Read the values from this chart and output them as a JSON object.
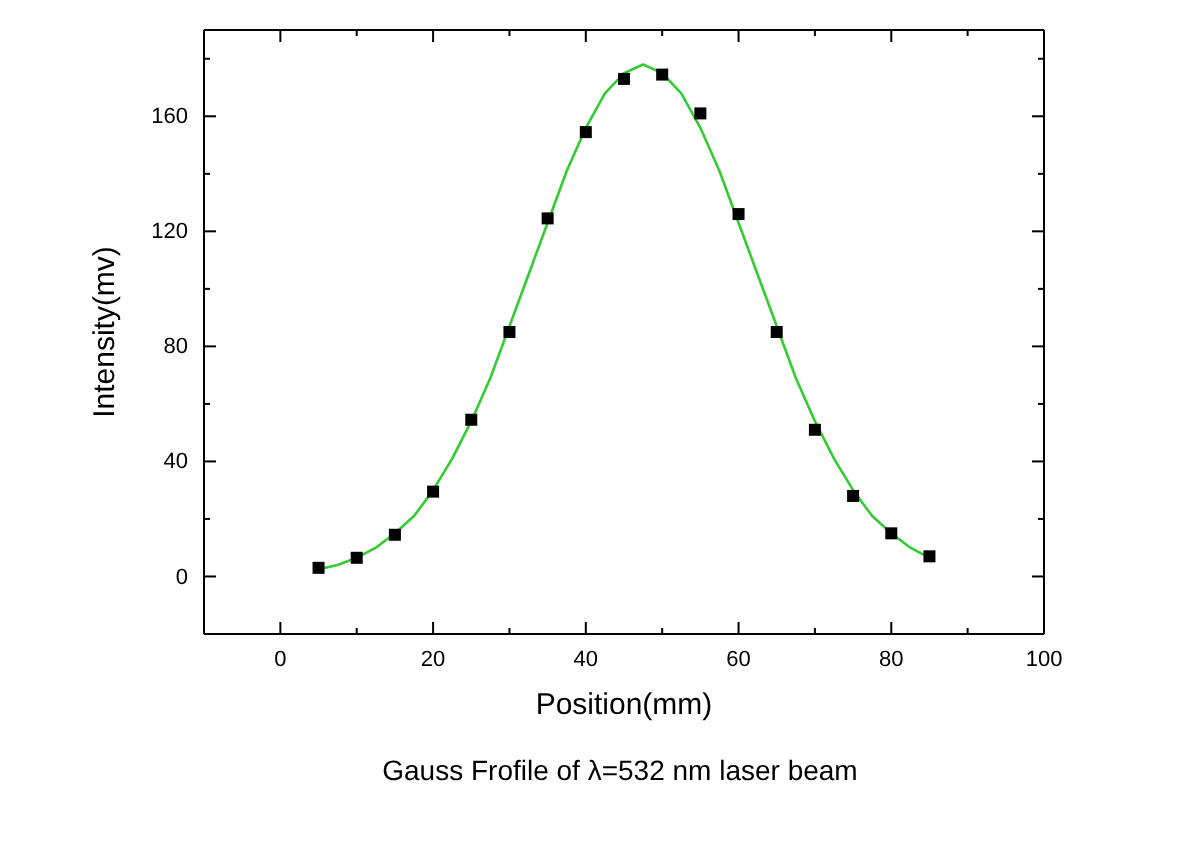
{
  "chart_data": {
    "type": "scatter",
    "title": "Gauss Frofile of λ=532 nm laser beam",
    "xlabel": "Position(mm)",
    "ylabel": "Intensity(mv)",
    "xlim": [
      -10,
      100
    ],
    "xticks": [
      0,
      {
        "value": 10,
        "label": null
      },
      20,
      {
        "value": 30,
        "label": null
      },
      40,
      {
        "value": 50,
        "label": null
      },
      60,
      {
        "value": 70,
        "label": null
      },
      80,
      {
        "value": 90,
        "label": null
      },
      100
    ],
    "ylim": [
      -20,
      190
    ],
    "yticks": [
      0,
      {
        "value": 20,
        "label": null
      },
      40,
      {
        "value": 60,
        "label": null
      },
      80,
      {
        "value": 100,
        "label": null
      },
      120,
      {
        "value": 140,
        "label": null
      },
      160,
      {
        "value": 180,
        "label": null
      }
    ],
    "grid": false,
    "series": [
      {
        "marker": "square",
        "color": "#000000",
        "x": [
          5,
          10,
          15,
          20,
          25,
          30,
          35,
          40,
          45,
          50,
          55,
          60,
          65,
          70,
          75,
          80,
          85
        ],
        "values": [
          3,
          6.5,
          14.5,
          29.5,
          54.5,
          85,
          124.5,
          154.5,
          173,
          174.5,
          161,
          126,
          85,
          51,
          28,
          15,
          7
        ]
      },
      {
        "type": "line",
        "marker": "none",
        "line_style": "solid",
        "color": "#33cc33",
        "x": [
          5,
          7.5,
          10,
          12.5,
          15,
          17.5,
          20,
          22.5,
          25,
          27.5,
          30,
          32.5,
          35,
          37.5,
          40,
          42.5,
          45,
          47.5,
          50,
          52.5,
          55,
          57.5,
          60,
          62.5,
          65,
          67.5,
          70,
          72.5,
          75,
          77.5,
          80,
          82.5,
          85
        ],
        "values": [
          2.5,
          4,
          6.5,
          10,
          15,
          21,
          30,
          41,
          54,
          69,
          87,
          105,
          123,
          141,
          156,
          168,
          175,
          178,
          175,
          168,
          156,
          141,
          123,
          105,
          87,
          69,
          54,
          41,
          30,
          21,
          15,
          10,
          6.5
        ]
      }
    ]
  }
}
